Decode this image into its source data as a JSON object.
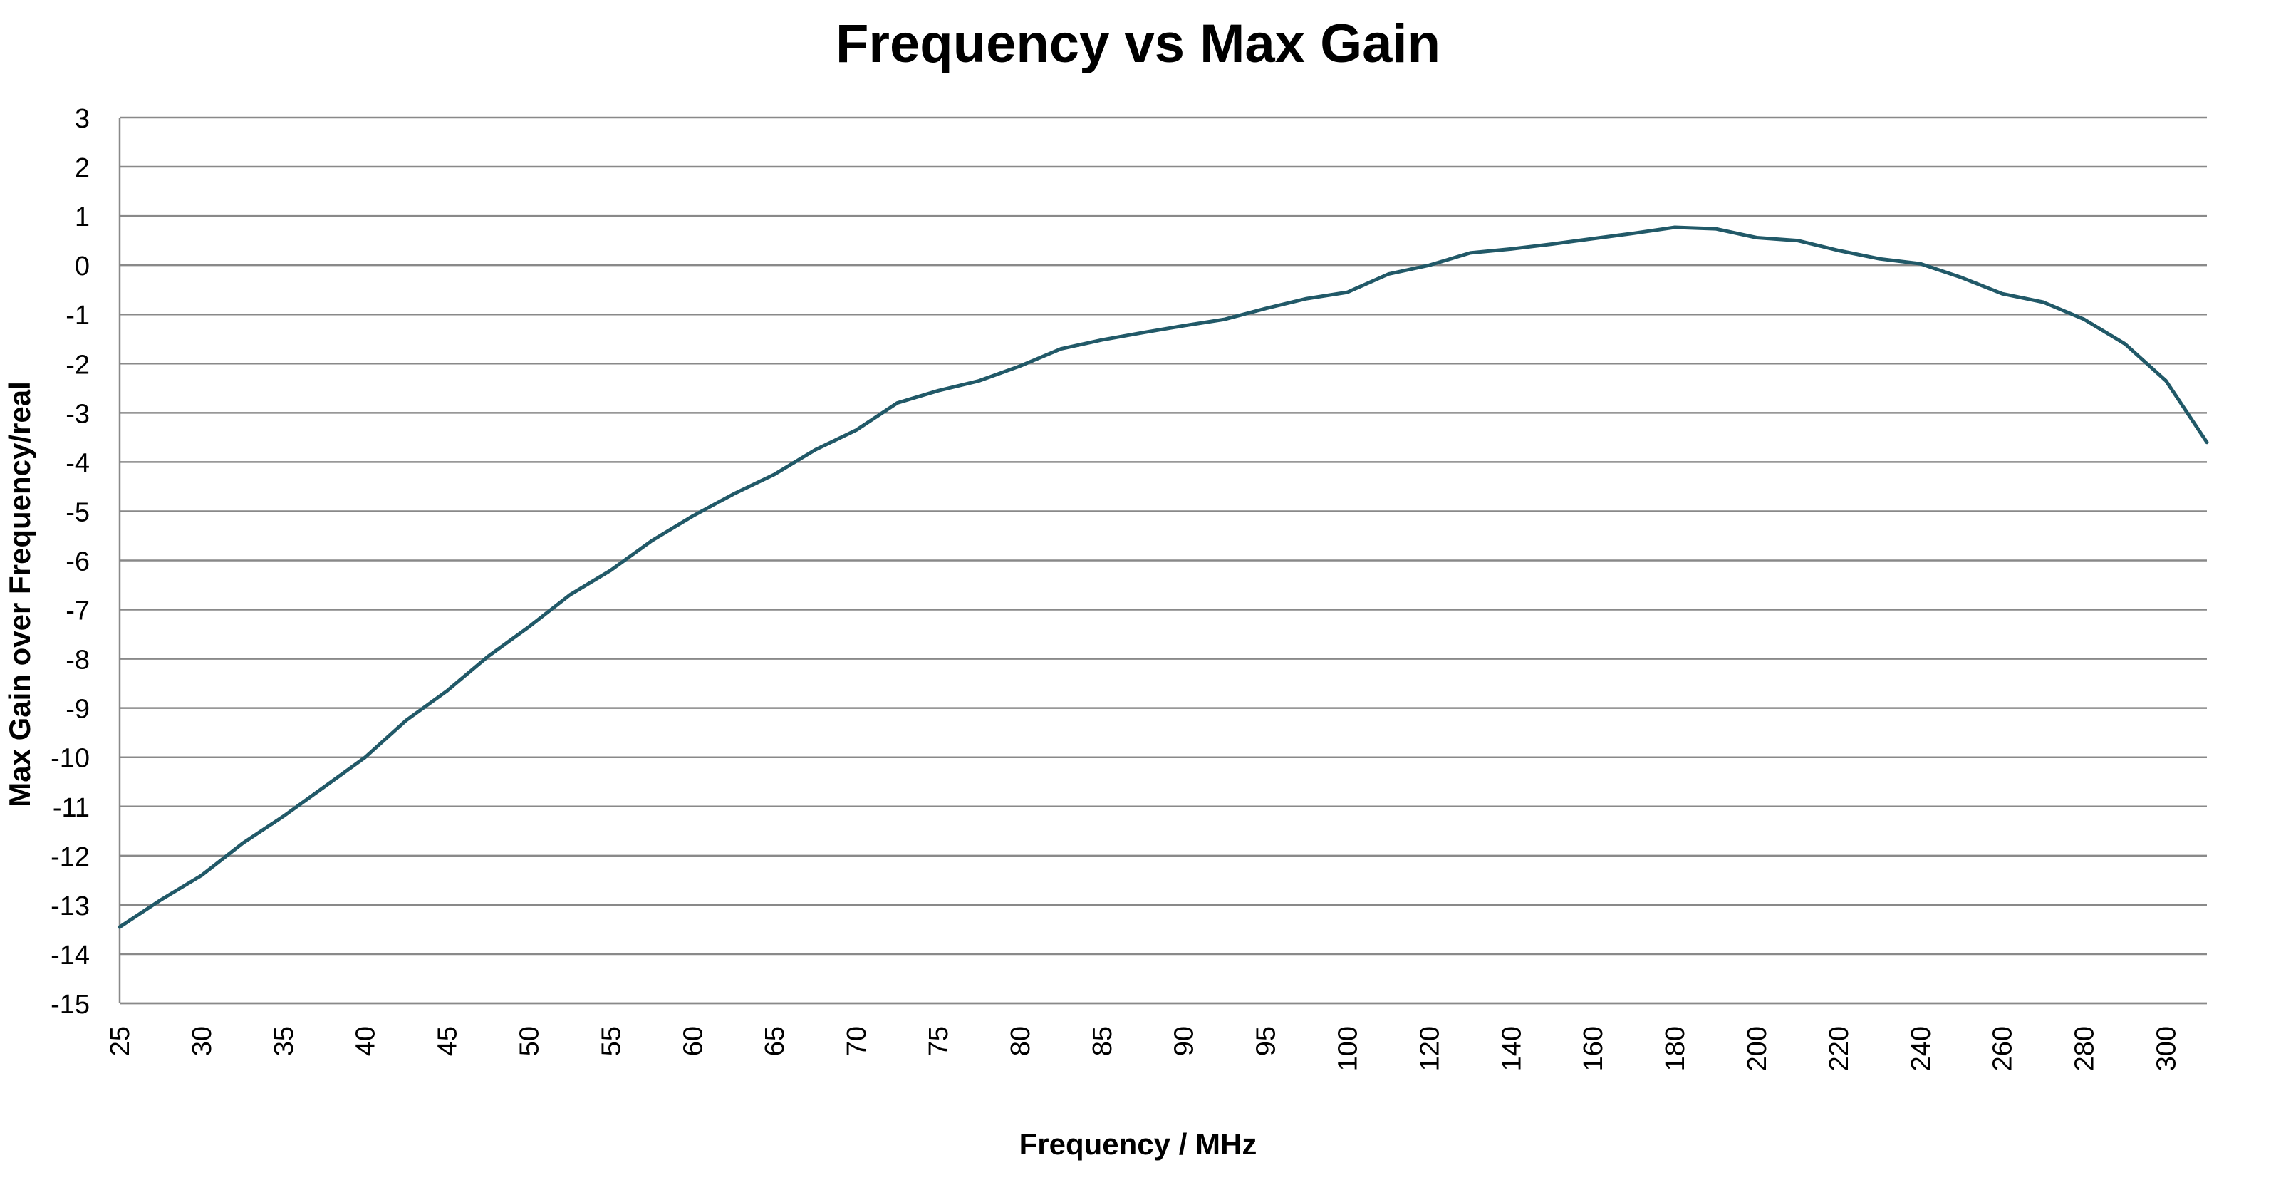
{
  "chart_data": {
    "type": "line",
    "title": "Frequency vs Max Gain",
    "xlabel": "Frequency / MHz",
    "ylabel": "Max Gain over Frequency/real",
    "ylim": [
      -15,
      3
    ],
    "y_ticks": [
      "3",
      "2",
      "1",
      "0",
      "-1",
      "-2",
      "-3",
      "-4",
      "-5",
      "-6",
      "-7",
      "-8",
      "-9",
      "-10",
      "-11",
      "-12",
      "-13",
      "-14",
      "-15"
    ],
    "x_axis": "categorical",
    "categories": [
      25,
      27.5,
      30,
      32.5,
      35,
      37.5,
      40,
      42.5,
      45,
      47.5,
      50,
      52.5,
      55,
      57.5,
      60,
      62.5,
      65,
      67.5,
      70,
      72.5,
      75,
      77.5,
      80,
      82.5,
      85,
      87.5,
      90,
      92.5,
      95,
      97.5,
      100,
      110,
      120,
      130,
      140,
      150,
      160,
      170,
      180,
      190,
      200,
      210,
      220,
      230,
      240,
      250,
      260,
      270,
      280,
      290,
      300,
      310
    ],
    "x_tick_labels": [
      "25",
      "",
      "30",
      "",
      "35",
      "",
      "40",
      "",
      "45",
      "",
      "50",
      "",
      "55",
      "",
      "60",
      "",
      "65",
      "",
      "70",
      "",
      "75",
      "",
      "80",
      "",
      "85",
      "",
      "90",
      "",
      "95",
      "",
      "100",
      "",
      "120",
      "",
      "140",
      "",
      "160",
      "",
      "180",
      "",
      "200",
      "",
      "220",
      "",
      "240",
      "",
      "260",
      "",
      "280",
      "",
      "300",
      ""
    ],
    "series": [
      {
        "color": "#215968",
        "values": [
          -13.45,
          -12.9,
          -12.4,
          -11.75,
          -11.2,
          -10.6,
          -10.0,
          -9.25,
          -8.65,
          -7.95,
          -7.35,
          -6.7,
          -6.2,
          -5.6,
          -5.1,
          -4.65,
          -4.25,
          -3.75,
          -3.35,
          -2.8,
          -2.55,
          -2.35,
          -2.05,
          -1.7,
          -1.52,
          -1.37,
          -1.23,
          -1.1,
          -0.88,
          -0.68,
          -0.55,
          -0.18,
          0.0,
          0.25,
          0.33,
          0.43,
          0.54,
          0.65,
          0.77,
          0.74,
          0.56,
          0.5,
          0.3,
          0.13,
          0.03,
          -0.25,
          -0.58,
          -0.75,
          -1.1,
          -1.6,
          -2.35,
          -3.6
        ]
      }
    ],
    "grid": true,
    "legend": "none",
    "colors": {
      "gridline": "#898989",
      "axis": "#898989",
      "series": "#215968"
    }
  }
}
